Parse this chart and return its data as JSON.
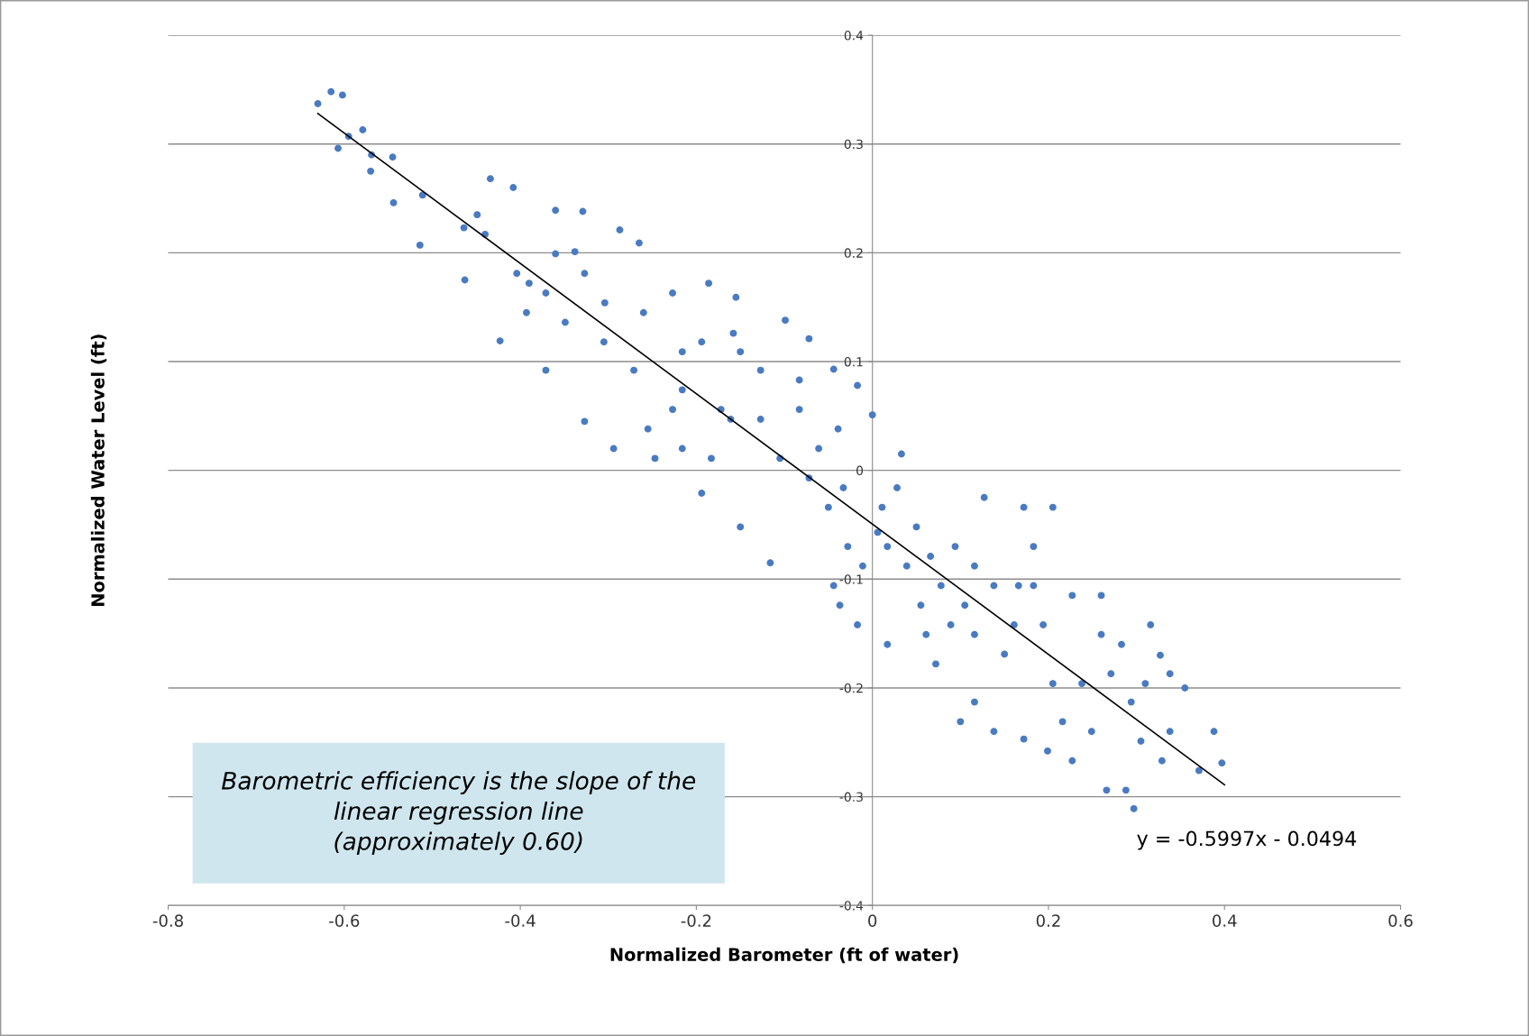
{
  "chart_data": {
    "type": "scatter",
    "xlabel": "Normalized Barometer (ft of water)",
    "ylabel": "Normalized Water Level (ft)",
    "xlim": [
      -0.8,
      0.6
    ],
    "xticks": [
      -0.8,
      -0.6,
      -0.4,
      -0.2,
      0,
      0.2,
      0.4,
      0.6
    ],
    "ylim": [
      -0.4,
      0.4
    ],
    "yticks": [
      -0.4,
      -0.3,
      -0.2,
      -0.1,
      0,
      0.1,
      0.2,
      0.3,
      0.4
    ],
    "grid": "y",
    "marker": "circle",
    "annotations": [
      "y = -0.5997x - 0.0494",
      "Barometric efficiency is the slope of the\nlinear regression line\n(approximately 0.60)"
    ],
    "series": [
      {
        "color": "#4a7bc1",
        "x": [
          -0.63,
          -0.615,
          -0.602,
          -0.607,
          -0.595,
          -0.579,
          -0.569,
          -0.57,
          -0.545,
          -0.544,
          -0.511,
          -0.514,
          -0.464,
          -0.463,
          -0.434,
          -0.408,
          -0.423,
          -0.449,
          -0.44,
          -0.39,
          -0.371,
          -0.36,
          -0.338,
          -0.329,
          -0.327,
          -0.287,
          -0.265,
          -0.294,
          -0.304,
          -0.349,
          -0.227,
          -0.216,
          -0.247,
          -0.155,
          -0.158,
          -0.186,
          -0.216,
          -0.15,
          -0.116,
          -0.194,
          -0.172,
          -0.127,
          -0.099,
          -0.072,
          -0.044,
          -0.017,
          -0.039,
          -0.083,
          -0.105,
          -0.072,
          -0.05,
          -0.028,
          -0.044,
          -0.037,
          -0.017,
          0.0,
          0.033,
          0.011,
          0.017,
          0.039,
          0.017,
          0.055,
          0.072,
          0.061,
          0.078,
          0.094,
          0.116,
          0.127,
          0.172,
          0.205,
          0.183,
          0.138,
          0.105,
          0.1,
          0.116,
          0.15,
          0.161,
          0.172,
          0.138,
          0.199,
          0.227,
          0.216,
          0.238,
          0.227,
          0.26,
          0.271,
          0.294,
          0.266,
          0.297,
          0.288,
          0.305,
          0.327,
          0.338,
          0.355,
          0.371,
          0.388,
          0.397,
          0.329,
          0.31,
          0.249,
          0.205,
          0.194,
          0.166,
          0.183,
          0.116,
          0.089,
          0.066,
          0.05,
          0.028,
          0.006,
          -0.011,
          -0.033,
          -0.061,
          -0.083,
          -0.127,
          -0.15,
          -0.194,
          -0.227,
          -0.255,
          -0.271,
          -0.26,
          -0.305,
          -0.327,
          -0.36,
          -0.371,
          -0.404,
          -0.393,
          -0.161,
          -0.183,
          -0.216,
          0.338,
          0.316,
          0.283,
          0.26
        ],
        "values": [
          0.337,
          0.348,
          0.345,
          0.296,
          0.307,
          0.313,
          0.29,
          0.275,
          0.288,
          0.246,
          0.253,
          0.207,
          0.223,
          0.175,
          0.268,
          0.26,
          0.119,
          0.235,
          0.217,
          0.172,
          0.092,
          0.239,
          0.201,
          0.238,
          0.045,
          0.221,
          0.209,
          0.02,
          0.154,
          0.136,
          0.163,
          0.02,
          0.011,
          0.159,
          0.126,
          0.172,
          0.109,
          -0.052,
          -0.085,
          -0.021,
          0.056,
          0.092,
          0.138,
          0.121,
          0.093,
          0.078,
          0.038,
          0.056,
          0.011,
          -0.007,
          -0.034,
          -0.07,
          -0.106,
          -0.124,
          -0.142,
          0.051,
          0.015,
          -0.034,
          -0.07,
          -0.088,
          -0.16,
          -0.124,
          -0.178,
          -0.151,
          -0.106,
          -0.07,
          -0.088,
          -0.025,
          -0.034,
          -0.034,
          -0.07,
          -0.106,
          -0.124,
          -0.231,
          -0.213,
          -0.169,
          -0.142,
          -0.247,
          -0.24,
          -0.258,
          -0.267,
          -0.231,
          -0.196,
          -0.115,
          -0.151,
          -0.187,
          -0.213,
          -0.294,
          -0.311,
          -0.294,
          -0.249,
          -0.17,
          -0.24,
          -0.2,
          -0.276,
          -0.24,
          -0.269,
          -0.267,
          -0.196,
          -0.24,
          -0.196,
          -0.142,
          -0.106,
          -0.106,
          -0.151,
          -0.142,
          -0.079,
          -0.052,
          -0.016,
          -0.057,
          -0.088,
          -0.016,
          0.02,
          0.083,
          0.047,
          0.109,
          0.118,
          0.056,
          0.038,
          0.092,
          0.145,
          0.118,
          0.181,
          0.199,
          0.163,
          0.181,
          0.145,
          0.047,
          0.011,
          0.074,
          -0.187,
          -0.142,
          -0.16,
          -0.115
        ]
      },
      {
        "type": "line",
        "marker": "none",
        "color": "#000000",
        "x": [
          -0.63,
          0.4
        ],
        "values": [
          0.328,
          -0.289
        ]
      }
    ]
  }
}
